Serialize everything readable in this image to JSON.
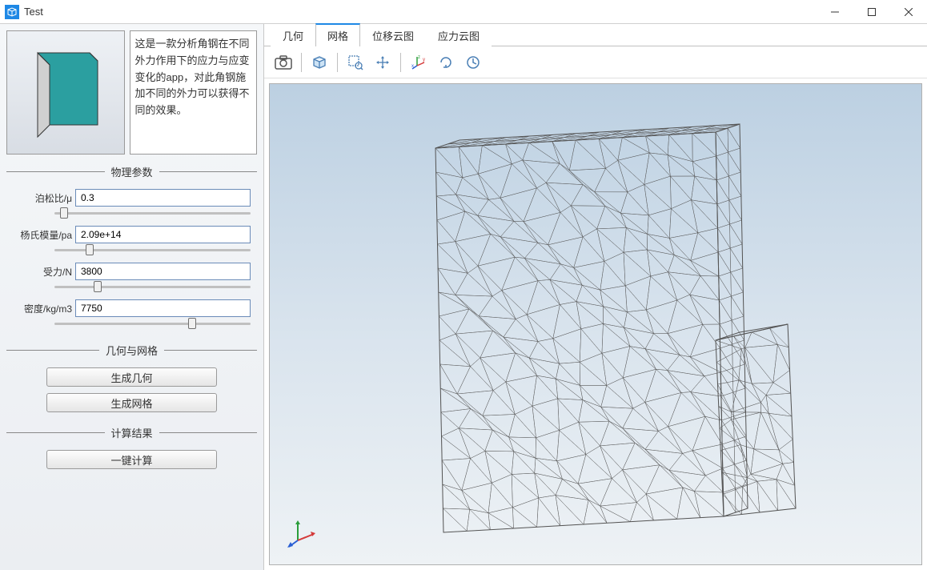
{
  "window": {
    "title": "Test",
    "icon_color": "#1e88e5"
  },
  "description": "这是一款分析角钢在不同外力作用下的应力与应变变化的app，对此角钢施加不同的外力可以获得不同的效果。",
  "thumbnail": {
    "shape": "angle_steel",
    "fill": "#2b9fa0",
    "edge": "#333333"
  },
  "sections": {
    "physics": "物理参数",
    "geom_mesh": "几何与网格",
    "results": "计算结果"
  },
  "params": {
    "poisson": {
      "label": "泊松比/μ",
      "value": "0.3",
      "slider_pct": 5
    },
    "youngs": {
      "label": "杨氏模量/pa",
      "value": "2.09e+14",
      "slider_pct": 18
    },
    "force": {
      "label": "受力/N",
      "value": "3800",
      "slider_pct": 22
    },
    "density": {
      "label": "密度/kg/m3",
      "value": "7750",
      "slider_pct": 70
    }
  },
  "buttons": {
    "gen_geom": "生成几何",
    "gen_mesh": "生成网格",
    "compute": "一键计算"
  },
  "tabs": [
    {
      "id": "geom",
      "label": "几何",
      "active": false
    },
    {
      "id": "mesh",
      "label": "网格",
      "active": true
    },
    {
      "id": "disp",
      "label": "位移云图",
      "active": false
    },
    {
      "id": "stress",
      "label": "应力云图",
      "active": false
    }
  ],
  "toolbar_icons": [
    "camera-icon",
    "box-icon",
    "zoom-region-icon",
    "pan-icon",
    "axis-triad-icon",
    "rotate-icon",
    "reset-view-icon"
  ],
  "viewport": {
    "bg_gradient_top": "#bcd0e2",
    "bg_gradient_bottom": "#eef2f5",
    "mesh_color": "#555555",
    "mesh_fill": "rgba(255,255,255,0.05)"
  }
}
